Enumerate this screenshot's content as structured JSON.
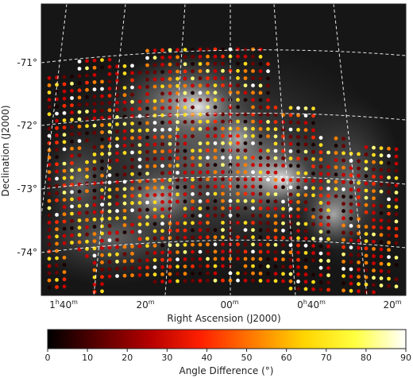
{
  "chart_data": {
    "type": "scatter",
    "subtype": "sky map with coloured markers over a greyscale intensity image",
    "xlabel": "Right Ascension (J2000)",
    "ylabel": "Declination (J2000)",
    "x_ticks": [
      {
        "h": "1",
        "hu": "h",
        "m": "40",
        "mu": "m"
      },
      {
        "h": "",
        "hu": "",
        "m": "20",
        "mu": "m"
      },
      {
        "h": "",
        "hu": "",
        "m": "00",
        "mu": "m"
      },
      {
        "h": "0",
        "hu": "h",
        "m": "40",
        "mu": "m"
      },
      {
        "h": "",
        "hu": "",
        "m": "20",
        "mu": "m"
      }
    ],
    "y_ticks": [
      "-71°",
      "-72°",
      "-73°",
      "-74°"
    ],
    "colorbar": {
      "label": "Angle Difference (°)",
      "min": 0,
      "max": 90,
      "ticks": [
        "0",
        "10",
        "20",
        "30",
        "40",
        "50",
        "60",
        "70",
        "80",
        "90"
      ],
      "colormap": "afmhot",
      "stops": [
        "#000000",
        "#5a0000",
        "#b50000",
        "#ff2000",
        "#ff7a00",
        "#ffd400",
        "#ffff40",
        "#ffffff"
      ]
    },
    "grid": true,
    "grid_style": "dashed white",
    "background": "greyscale intensity map",
    "marker_colors": {
      "black": "#1a0000",
      "maroon": "#6b0000",
      "red": "#c80000",
      "bright_red": "#ff2a00",
      "orange": "#ff8000",
      "yellow": "#ffdc1e",
      "light_yellow": "#ffff7a",
      "white": "#ffffff"
    }
  }
}
